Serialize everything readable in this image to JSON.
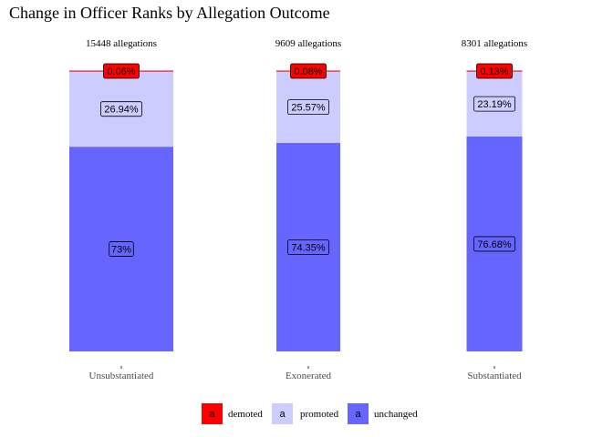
{
  "chart_data": {
    "type": "bar",
    "stacked": true,
    "title": "Change in Officer Ranks by Allegation Outcome",
    "xlabel": "",
    "ylabel": "",
    "ylim": [
      0,
      100
    ],
    "grid": false,
    "legend_position": "bottom",
    "categories": [
      "Unsubstantiated",
      "Exonerated",
      "Substantiated"
    ],
    "counts": [
      "15448 allegations",
      "9609 allegations",
      "8301 allegations"
    ],
    "series": [
      {
        "name": "unchanged",
        "color": "#6666ff",
        "values": [
          73,
          74.35,
          76.68
        ],
        "labels": [
          "73%",
          "74.35%",
          "76.68%"
        ]
      },
      {
        "name": "promoted",
        "color": "#ccccff",
        "values": [
          26.94,
          25.57,
          23.19
        ],
        "labels": [
          "26.94%",
          "25.57%",
          "23.19%"
        ]
      },
      {
        "name": "demoted",
        "color": "#ff0000",
        "values": [
          0.06,
          0.08,
          0.13
        ],
        "labels": [
          "0.06%",
          "0.08%",
          "0.13%"
        ]
      }
    ],
    "legend": {
      "key_letter": "a",
      "entries": [
        "demoted",
        "promoted",
        "unchanged"
      ]
    }
  }
}
